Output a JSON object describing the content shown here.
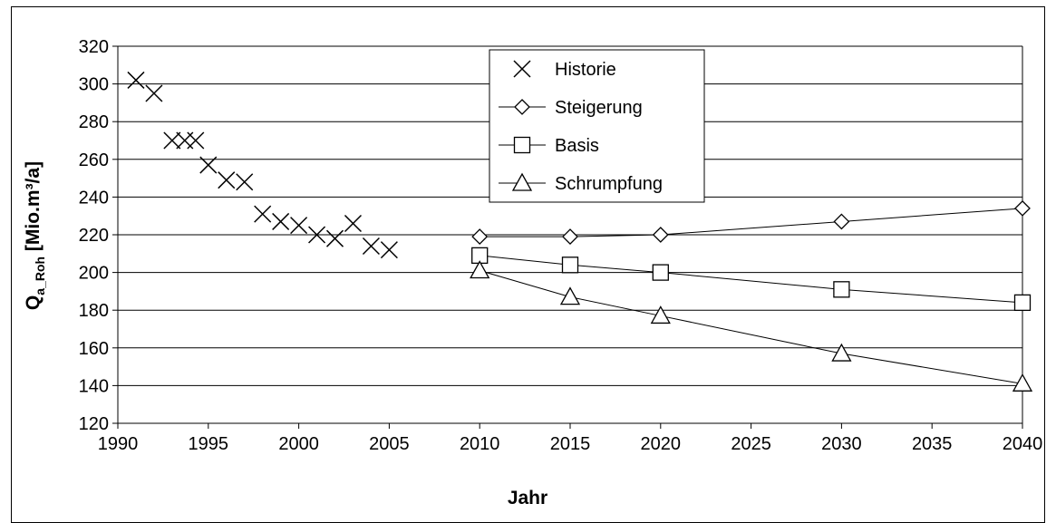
{
  "chart_data": {
    "type": "line",
    "xlabel": "Jahr",
    "ylabel_main": "Q",
    "ylabel_sub": "a_Roh",
    "ylabel_unit": " [Mio.m³/a]",
    "xlim": [
      1990,
      2040
    ],
    "ylim": [
      120,
      320
    ],
    "xticks": [
      1990,
      1995,
      2000,
      2005,
      2010,
      2015,
      2020,
      2025,
      2030,
      2035,
      2040
    ],
    "yticks": [
      120,
      140,
      160,
      180,
      200,
      220,
      240,
      260,
      280,
      300,
      320
    ],
    "grid": "horizontal",
    "legend_position": "top-center",
    "series": [
      {
        "name": "Historie",
        "marker": "x",
        "line": false,
        "x": [
          1991,
          1992,
          1993,
          1993.7,
          1994.3,
          1995,
          1996,
          1997,
          1998,
          1999,
          2000,
          2001,
          2002,
          2003,
          2004,
          2005
        ],
        "y": [
          302,
          295,
          270,
          270,
          270,
          257,
          249,
          248,
          231,
          227,
          225,
          220,
          218,
          226,
          214,
          212
        ]
      },
      {
        "name": "Steigerung",
        "marker": "diamond",
        "line": true,
        "x": [
          2010,
          2015,
          2020,
          2030,
          2040
        ],
        "y": [
          219,
          219,
          220,
          227,
          234
        ]
      },
      {
        "name": "Basis",
        "marker": "square",
        "line": true,
        "x": [
          2010,
          2015,
          2020,
          2030,
          2040
        ],
        "y": [
          209,
          204,
          200,
          191,
          184
        ]
      },
      {
        "name": "Schrumpfung",
        "marker": "triangle",
        "line": true,
        "x": [
          2010,
          2015,
          2020,
          2030,
          2040
        ],
        "y": [
          201,
          187,
          177,
          157,
          141
        ]
      }
    ]
  }
}
